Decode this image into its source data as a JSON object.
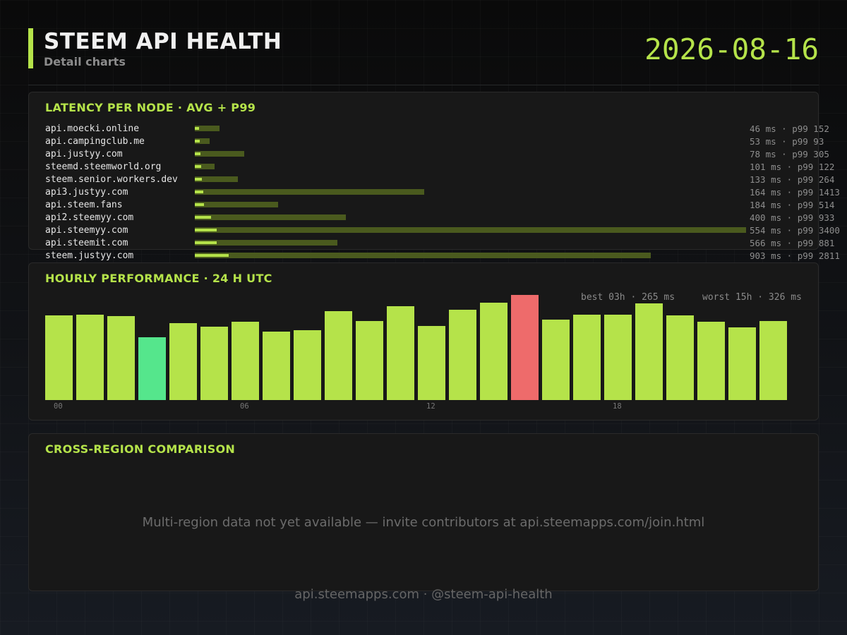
{
  "header": {
    "title": "STEEM API HEALTH",
    "subtitle": "Detail charts",
    "date": "2026-08-16"
  },
  "latency": {
    "title": "LATENCY PER NODE  ·  AVG + P99",
    "max_ms": 3400,
    "colors": {
      "avg": "#b5e34a",
      "p99": "#4a5a1e"
    },
    "nodes": [
      {
        "name": "api.moecki.online",
        "avg": 46,
        "p99": 152,
        "label": "46 ms  · p99 152"
      },
      {
        "name": "api.campingclub.me",
        "avg": 53,
        "p99": 93,
        "label": "53 ms  · p99 93"
      },
      {
        "name": "api.justyy.com",
        "avg": 78,
        "p99": 305,
        "label": "78 ms  · p99 305"
      },
      {
        "name": "steemd.steemworld.org",
        "avg": 101,
        "p99": 122,
        "label": "101 ms  · p99 122"
      },
      {
        "name": "steem.senior.workers.dev",
        "avg": 133,
        "p99": 264,
        "label": "133 ms  · p99 264"
      },
      {
        "name": "api3.justyy.com",
        "avg": 164,
        "p99": 1413,
        "label": "164 ms  · p99 1413"
      },
      {
        "name": "api.steem.fans",
        "avg": 184,
        "p99": 514,
        "label": "184 ms  · p99 514"
      },
      {
        "name": "api2.steemyy.com",
        "avg": 400,
        "p99": 933,
        "label": "400 ms  · p99 933"
      },
      {
        "name": "api.steemyy.com",
        "avg": 554,
        "p99": 3400,
        "label": "554 ms  · p99 3400"
      },
      {
        "name": "api.steemit.com",
        "avg": 566,
        "p99": 881,
        "label": "566 ms  · p99 881"
      },
      {
        "name": "steem.justyy.com",
        "avg": 903,
        "p99": 2811,
        "label": "903 ms  · p99 2811"
      }
    ]
  },
  "hourly": {
    "title": "HOURLY PERFORMANCE  ·  24 H UTC",
    "best_label": "best 03h · 265 ms",
    "worst_label": "worst 15h · 326 ms",
    "ticks": [
      "00",
      "06",
      "12",
      "18"
    ],
    "colors": {
      "normal": "#b5e34a",
      "best": "#55e68c",
      "worst": "#ee6b6b"
    }
  },
  "chart_data": {
    "type": "bar",
    "categories": [
      "00",
      "01",
      "02",
      "03",
      "04",
      "05",
      "06",
      "07",
      "08",
      "09",
      "10",
      "11",
      "12",
      "13",
      "14",
      "15",
      "16",
      "17",
      "18",
      "19",
      "20",
      "21",
      "22",
      "23"
    ],
    "values": [
      297,
      298,
      296,
      265,
      285,
      280,
      287,
      273,
      275,
      303,
      288,
      310,
      281,
      305,
      315,
      326,
      291,
      298,
      298,
      314,
      297,
      287,
      279,
      289
    ],
    "title": "HOURLY PERFORMANCE  ·  24 H UTC",
    "xlabel": "",
    "ylabel": "",
    "best_index": 3,
    "worst_index": 15,
    "grid": false
  },
  "region": {
    "title": "CROSS-REGION COMPARISON",
    "message": "Multi-region data not yet available — invite contributors at api.steemapps.com/join.html"
  },
  "footer": {
    "text": "api.steemapps.com  ·  @steem-api-health"
  }
}
